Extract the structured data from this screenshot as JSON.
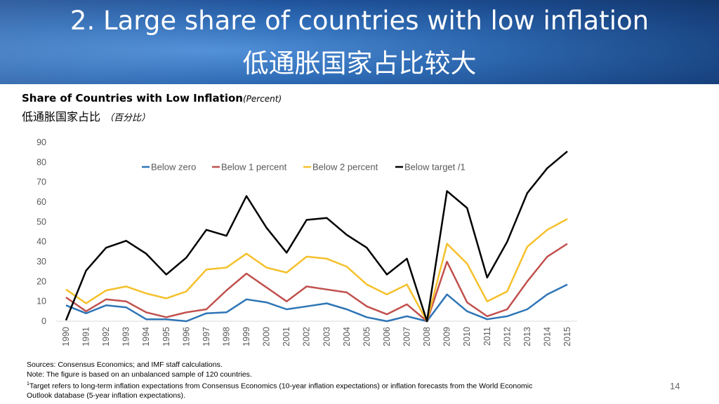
{
  "slide": {
    "title_en": "2. Large share of countries with low inflation",
    "title_cn": "低通胀国家占比较大",
    "page_number": "14"
  },
  "chart_data": {
    "type": "line",
    "title": "Share of Countries with Low Inflation",
    "title_unit": "(Percent)",
    "title_cn": "低通胀国家占比",
    "title_cn_unit": "（百分比）",
    "ylim": [
      0,
      90
    ],
    "yticks": [
      0,
      10,
      20,
      30,
      40,
      50,
      60,
      70,
      80,
      90
    ],
    "grid": false,
    "legend_position": "top",
    "categories": [
      "1990",
      "1991",
      "1992",
      "1993",
      "1994",
      "1995",
      "1996",
      "1997",
      "1998",
      "1999",
      "2000",
      "2001",
      "2002",
      "2003",
      "2004",
      "2005",
      "2006",
      "2007",
      "2008",
      "2009",
      "2010",
      "2011",
      "2012",
      "2013",
      "2014",
      "2015"
    ],
    "series": [
      {
        "name": "Below zero",
        "color": "#2e75b6",
        "values": [
          8,
          4,
          8,
          7,
          1,
          1,
          0,
          4,
          4.5,
          11,
          9.5,
          6,
          7.5,
          9,
          6,
          2,
          0,
          2.5,
          0,
          13.5,
          5,
          1,
          2.5,
          6,
          13.5,
          18.5
        ]
      },
      {
        "name": "Below 1 percent",
        "color": "#c0504d",
        "values": [
          12,
          5,
          11,
          10,
          4.5,
          2,
          4.5,
          6,
          15.5,
          24,
          17,
          10,
          17.5,
          16,
          14.5,
          7.5,
          3.5,
          8.5,
          0,
          30,
          9.5,
          2.5,
          6,
          20,
          32.5,
          39
        ]
      },
      {
        "name": "Below 2 percent",
        "color": "#f5c02b",
        "values": [
          16,
          9,
          15.5,
          17.5,
          14,
          11.5,
          15,
          26,
          27,
          34,
          27,
          24.5,
          32.5,
          31.5,
          27.5,
          18.5,
          13.5,
          18.5,
          0,
          39,
          29,
          10,
          15,
          37.5,
          46,
          51.5
        ]
      },
      {
        "name": "Below target /1",
        "color": "#000000",
        "values": [
          0.5,
          25.5,
          37,
          40.5,
          34,
          23.5,
          32,
          46,
          43,
          63,
          47,
          34.5,
          51,
          52,
          43.5,
          37,
          23.5,
          31.5,
          0,
          65.5,
          57,
          22,
          40,
          64.5,
          77,
          85.5
        ]
      }
    ]
  },
  "notes": {
    "sources": "Sources: Consensus Economics; and IMF staff calculations.",
    "note": "Note: The figure is based on an unbalanced sample of 120 countries.",
    "footnote_mark": "1",
    "footnote_line1": "Target refers to long-term inflation expectations from Consensus Economics (10-year inflation expectations) or inflation forecasts from the World Economic",
    "footnote_line2": "Outlook database (5-year inflation expectations)."
  }
}
